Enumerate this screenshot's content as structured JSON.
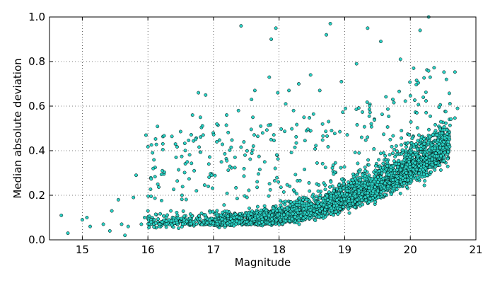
{
  "chart_data": {
    "type": "scatter",
    "title": "",
    "xlabel": "Magnitude",
    "ylabel": "Median absolute deviation",
    "xlim": [
      14.5,
      21.0
    ],
    "ylim": [
      0.0,
      1.0
    ],
    "xticks": [
      15,
      16,
      17,
      18,
      19,
      20,
      21
    ],
    "yticks": [
      0.0,
      0.2,
      0.4,
      0.6,
      0.8,
      1.0
    ],
    "xtick_labels": [
      "15",
      "16",
      "17",
      "18",
      "19",
      "20",
      "21"
    ],
    "ytick_labels": [
      "0.0",
      "0.2",
      "0.4",
      "0.6",
      "0.8",
      "1.0"
    ],
    "grid": true,
    "grid_style": "dotted",
    "legend": "none",
    "marker_color": "#2ad1c4",
    "marker_edge_color": "#000000",
    "series": [
      {
        "trend_description": "Dense cloud rising from ~0.07 at mag 16.5 to ~0.45 at mag 20.5",
        "points": [
          [
            14.68,
            0.11
          ],
          [
            14.78,
            0.03
          ],
          [
            15.0,
            0.09
          ],
          [
            15.07,
            0.1
          ],
          [
            15.12,
            0.06
          ],
          [
            15.32,
            0.07
          ],
          [
            15.42,
            0.04
          ],
          [
            15.45,
            0.13
          ],
          [
            15.55,
            0.18
          ],
          [
            15.6,
            0.07
          ],
          [
            15.65,
            0.02
          ],
          [
            15.7,
            0.06
          ],
          [
            15.78,
            0.19
          ],
          [
            15.82,
            0.29
          ],
          [
            15.9,
            0.07
          ],
          [
            15.95,
            0.1
          ],
          [
            15.97,
            0.47
          ],
          [
            16.0,
            0.13
          ],
          [
            16.05,
            0.08
          ],
          [
            16.08,
            0.32
          ],
          [
            16.1,
            0.09
          ],
          [
            16.15,
            0.25
          ],
          [
            16.18,
            0.07
          ],
          [
            16.22,
            0.31
          ],
          [
            16.28,
            0.1
          ],
          [
            16.35,
            0.13
          ],
          [
            16.42,
            0.43
          ],
          [
            16.45,
            0.11
          ],
          [
            16.52,
            0.2
          ],
          [
            16.6,
            0.35
          ],
          [
            16.68,
            0.56
          ],
          [
            16.74,
            0.22
          ],
          [
            16.77,
            0.66
          ],
          [
            16.8,
            0.55
          ],
          [
            16.88,
            0.65
          ],
          [
            16.92,
            0.24
          ],
          [
            16.97,
            0.29
          ],
          [
            17.05,
            0.44
          ],
          [
            17.12,
            0.35
          ],
          [
            17.2,
            0.56
          ],
          [
            17.25,
            0.33
          ],
          [
            17.38,
            0.58
          ],
          [
            17.42,
            0.96
          ],
          [
            17.48,
            0.38
          ],
          [
            17.58,
            0.63
          ],
          [
            17.6,
            0.55
          ],
          [
            17.63,
            0.67
          ],
          [
            17.72,
            0.51
          ],
          [
            17.78,
            0.35
          ],
          [
            17.85,
            0.73
          ],
          [
            17.88,
            0.9
          ],
          [
            17.95,
            0.95
          ],
          [
            17.98,
            0.66
          ],
          [
            18.1,
            0.61
          ],
          [
            18.15,
            0.67
          ],
          [
            18.22,
            0.58
          ],
          [
            18.3,
            0.7
          ],
          [
            18.38,
            0.55
          ],
          [
            18.48,
            0.74
          ],
          [
            18.62,
            0.67
          ],
          [
            18.72,
            0.92
          ],
          [
            18.78,
            0.97
          ],
          [
            18.95,
            0.71
          ],
          [
            19.18,
            0.79
          ],
          [
            19.35,
            0.95
          ],
          [
            19.55,
            0.89
          ],
          [
            19.85,
            0.81
          ],
          [
            20.05,
            0.77
          ],
          [
            20.15,
            0.94
          ],
          [
            20.28,
            1.0
          ],
          [
            20.55,
            0.72
          ],
          [
            20.72,
            0.59
          ]
        ]
      }
    ]
  }
}
